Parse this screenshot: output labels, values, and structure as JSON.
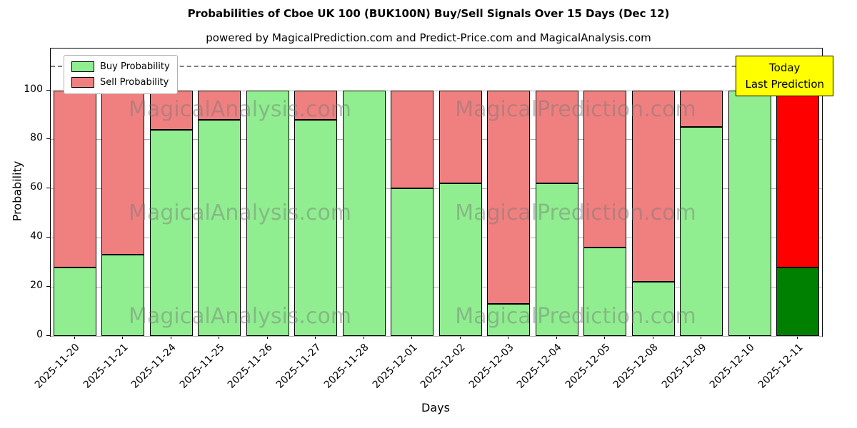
{
  "title": "Probabilities of Cboe UK 100 (BUK100N) Buy/Sell Signals Over 15 Days (Dec 12)",
  "subtitle": "powered by MagicalPrediction.com and Predict-Price.com and MagicalAnalysis.com",
  "legend": {
    "buy_label": "Buy Probability",
    "sell_label": "Sell Probability"
  },
  "annotation": {
    "line1": "Today",
    "line2": "Last Prediction"
  },
  "watermarks": [
    "MagicalAnalysis.com",
    "MagicalPrediction.com"
  ],
  "colors": {
    "buy": "#90EE90",
    "sell": "#F08080",
    "buy_today": "#008000",
    "sell_today": "#FF0000",
    "annotation_bg": "#FFFF00",
    "bar_edge": "#000000",
    "grid": "#b0b0b0",
    "dashed_line": "#7f7f7f"
  },
  "chart_data": {
    "type": "bar",
    "stacked": true,
    "title": "Probabilities of Cboe UK 100 (BUK100N) Buy/Sell Signals Over 15 Days (Dec 12)",
    "xlabel": "Days",
    "ylabel": "Probability",
    "ylim": [
      0,
      117
    ],
    "yticks": [
      0,
      20,
      40,
      60,
      80,
      100
    ],
    "dashed_line_y": 110,
    "grid": true,
    "legend_position": "upper left",
    "categories": [
      "2025-11-20",
      "2025-11-21",
      "2025-11-24",
      "2025-11-25",
      "2025-11-26",
      "2025-11-27",
      "2025-11-28",
      "2025-12-01",
      "2025-12-02",
      "2025-12-03",
      "2025-12-04",
      "2025-12-05",
      "2025-12-08",
      "2025-12-09",
      "2025-12-10",
      "2025-12-11"
    ],
    "series": [
      {
        "name": "Buy Probability",
        "values": [
          28,
          33,
          84,
          88,
          100,
          88,
          100,
          60,
          62,
          13,
          62,
          36,
          22,
          85,
          100,
          28
        ]
      },
      {
        "name": "Sell Probability",
        "values": [
          72,
          67,
          16,
          12,
          0,
          12,
          0,
          40,
          38,
          87,
          38,
          64,
          78,
          15,
          0,
          72
        ]
      }
    ],
    "today_index": 15
  }
}
